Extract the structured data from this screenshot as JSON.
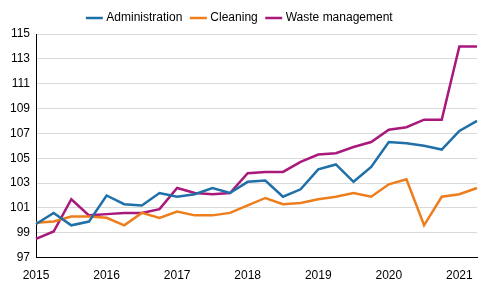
{
  "chart_data": {
    "type": "line",
    "categories": [
      "2015",
      null,
      null,
      null,
      "2016",
      null,
      null,
      null,
      "2017",
      null,
      null,
      null,
      "2018",
      null,
      null,
      null,
      "2019",
      null,
      null,
      null,
      "2020",
      null,
      null,
      null,
      "2021",
      null
    ],
    "series": [
      {
        "name": "Administration",
        "color": "#1f6fa8",
        "values": [
          99.7,
          100.6,
          99.6,
          99.9,
          102.0,
          101.3,
          101.2,
          102.2,
          101.9,
          102.1,
          102.6,
          102.2,
          103.1,
          103.2,
          101.9,
          102.5,
          104.1,
          104.5,
          103.1,
          104.3,
          106.3,
          106.2,
          106.0,
          105.7,
          107.2,
          108.0
        ]
      },
      {
        "name": "Cleaning",
        "color": "#ee7d1c",
        "values": [
          99.8,
          99.9,
          100.3,
          100.3,
          100.2,
          99.6,
          100.6,
          100.2,
          100.7,
          100.4,
          100.4,
          100.6,
          101.2,
          101.8,
          101.3,
          101.4,
          101.7,
          101.9,
          102.2,
          101.9,
          102.9,
          103.3,
          99.6,
          101.9,
          102.1,
          102.6
        ]
      },
      {
        "name": "Waste management",
        "color": "#a8197b",
        "values": [
          98.5,
          99.1,
          101.7,
          100.4,
          100.5,
          100.6,
          100.6,
          100.9,
          102.6,
          102.2,
          102.1,
          102.2,
          103.8,
          103.9,
          103.9,
          104.7,
          105.3,
          105.4,
          105.9,
          106.3,
          107.3,
          107.5,
          108.1,
          108.1,
          114.0,
          114.0
        ]
      }
    ],
    "ylim": [
      97,
      115
    ],
    "yticks": [
      97,
      99,
      101,
      103,
      105,
      107,
      109,
      111,
      113,
      115
    ],
    "grid": true,
    "legend": "top"
  }
}
